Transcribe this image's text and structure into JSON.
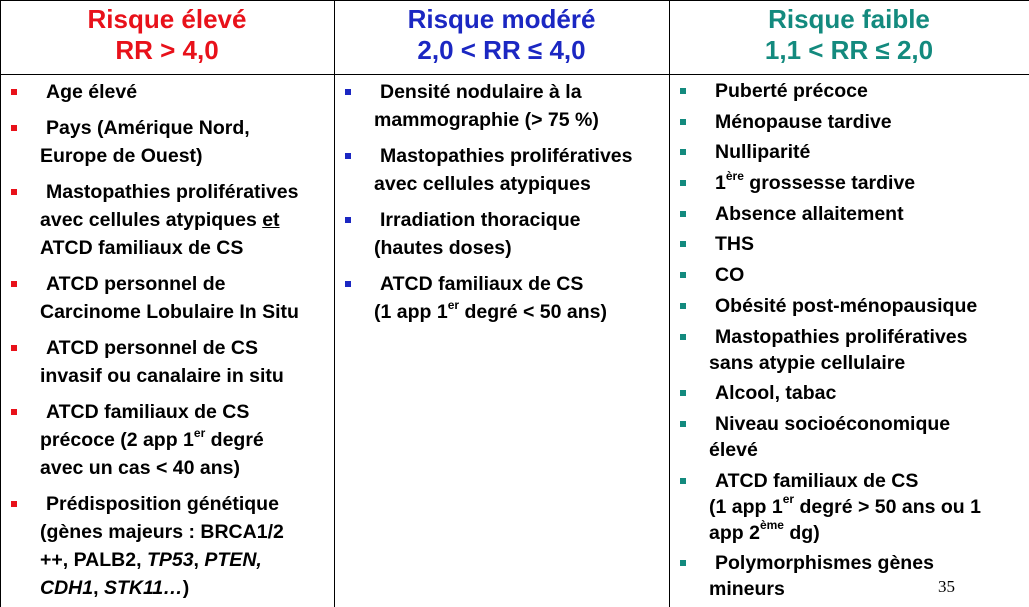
{
  "columns": [
    {
      "title": "Risque élevé",
      "subtitle": "RR > 4,0",
      "color": "#e8111a",
      "items": [
        {
          "lines": [
            "Age élevé"
          ]
        },
        {
          "lines": [
            "Pays (Amérique Nord,",
            "Europe de Ouest)"
          ]
        },
        {
          "l1": "Mastopathies prolifératives",
          "l2_pre": "avec cellules atypiques ",
          "l2_u": "et",
          "l3": "ATCD familiaux de CS"
        },
        {
          "lines": [
            "ATCD personnel de",
            "Carcinome Lobulaire In Situ"
          ]
        },
        {
          "lines": [
            "ATCD personnel de CS",
            "invasif ou canalaire in situ"
          ]
        },
        {
          "l1": "ATCD familiaux de CS",
          "l2_pre": "précoce (2 app 1",
          "l2_sup": "er",
          "l2_post": " degré",
          "l3": "avec un cas < 40 ans)"
        },
        {
          "l1": "Prédisposition génétique",
          "l2": "(gènes majeurs : BRCA1/2",
          "l3_pre": "++, PALB2, ",
          "l3_i1": "TP53",
          "l3_mid": ", ",
          "l3_i2": "PTEN,",
          "l4_i": "CDH1",
          "l4_mid": ", ",
          "l4_i2": "STK11…",
          "l4_post": ")"
        }
      ]
    },
    {
      "title": "Risque modéré",
      "subtitle": "2,0 < RR ≤ 4,0",
      "color": "#1b27c2",
      "items": [
        {
          "lines": [
            "Densité nodulaire à la",
            "mammographie (> 75 %)"
          ]
        },
        {
          "lines": [
            "Mastopathies prolifératives",
            "avec cellules atypiques"
          ]
        },
        {
          "lines": [
            "Irradiation thoracique",
            "(hautes doses)"
          ]
        },
        {
          "l1": "ATCD familiaux de CS",
          "l2_pre": "(1 app 1",
          "l2_sup": "er",
          "l2_post": " degré < 50 ans)"
        }
      ]
    },
    {
      "title": "Risque faible",
      "subtitle": "1,1 < RR ≤ 2,0",
      "color": "#138a7e",
      "items": [
        {
          "lines": [
            "Puberté précoce"
          ]
        },
        {
          "lines": [
            "Ménopause tardive"
          ]
        },
        {
          "lines": [
            "Nulliparité"
          ]
        },
        {
          "l1_pre": "1",
          "l1_sup": "ère",
          "l1_post": " grossesse tardive"
        },
        {
          "lines": [
            "Absence allaitement"
          ]
        },
        {
          "lines": [
            "THS"
          ]
        },
        {
          "lines": [
            "CO"
          ]
        },
        {
          "lines": [
            "Obésité post-ménopausique"
          ]
        },
        {
          "lines": [
            "Mastopathies prolifératives",
            "sans atypie cellulaire"
          ]
        },
        {
          "lines": [
            "Alcool, tabac"
          ]
        },
        {
          "lines": [
            "Niveau socioéconomique",
            "élevé"
          ]
        },
        {
          "l1": "ATCD familiaux de CS",
          "l2_pre": "(1 app 1",
          "l2_sup": "er",
          "l2_post": " degré > 50 ans ou 1",
          "l3_pre": "app 2",
          "l3_sup": "ème",
          "l3_post": " dg)"
        },
        {
          "lines": [
            "Polymorphismes gènes",
            "mineurs"
          ]
        }
      ]
    }
  ],
  "page_number": "35"
}
